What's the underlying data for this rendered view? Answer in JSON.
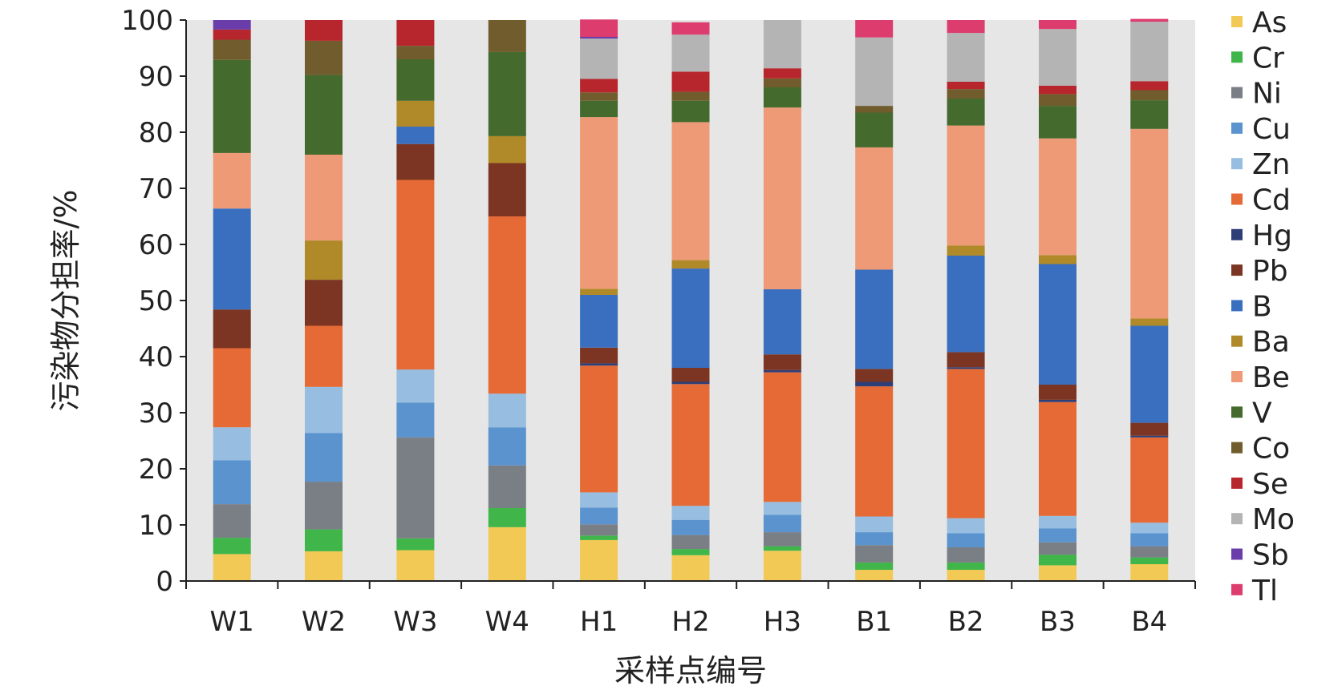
{
  "chart_data": {
    "type": "bar",
    "stacked": true,
    "title": "",
    "xlabel": "采样点编号",
    "ylabel": "污染物分担率/%",
    "ylim": [
      0,
      100
    ],
    "yticks": [
      0,
      10,
      20,
      30,
      40,
      50,
      60,
      70,
      80,
      90,
      100
    ],
    "grid": false,
    "legend_position": "right",
    "categories": [
      "W1",
      "W2",
      "W3",
      "W4",
      "H1",
      "H2",
      "H3",
      "B1",
      "B2",
      "B3",
      "B4"
    ],
    "series": [
      {
        "name": "As",
        "color": "#F2C955",
        "values": [
          4.8,
          5.3,
          5.5,
          9.6,
          7.3,
          4.6,
          5.4,
          2.0,
          2.0,
          2.8,
          3.0
        ]
      },
      {
        "name": "Cr",
        "color": "#3FB54A",
        "values": [
          2.9,
          3.9,
          2.1,
          3.4,
          0.8,
          1.1,
          0.8,
          1.3,
          1.3,
          1.9,
          1.2
        ]
      },
      {
        "name": "Ni",
        "color": "#7A7E85",
        "values": [
          6.0,
          8.5,
          18.0,
          7.6,
          2.0,
          2.5,
          2.5,
          3.1,
          2.7,
          2.2,
          2.0
        ]
      },
      {
        "name": "Cu",
        "color": "#5B93CF",
        "values": [
          7.8,
          8.7,
          6.2,
          6.8,
          3.0,
          2.7,
          3.1,
          2.3,
          2.5,
          2.5,
          2.3
        ]
      },
      {
        "name": "Zn",
        "color": "#97BDE0",
        "values": [
          5.9,
          8.2,
          5.9,
          6.0,
          2.7,
          2.5,
          2.3,
          2.8,
          2.7,
          2.2,
          1.9
        ]
      },
      {
        "name": "Cd",
        "color": "#E56A36",
        "values": [
          14.1,
          10.9,
          33.8,
          31.6,
          22.6,
          21.7,
          23.1,
          23.2,
          26.6,
          20.3,
          15.2
        ]
      },
      {
        "name": "Hg",
        "color": "#2E3F78",
        "values": [
          0.0,
          0.0,
          0.0,
          0.0,
          0.4,
          0.4,
          0.4,
          0.8,
          0.3,
          0.4,
          0.3
        ]
      },
      {
        "name": "Pb",
        "color": "#7B3522",
        "values": [
          6.9,
          8.2,
          6.4,
          9.5,
          2.8,
          2.5,
          2.8,
          2.3,
          2.7,
          2.7,
          2.3
        ]
      },
      {
        "name": "B",
        "color": "#3A6FC0",
        "values": [
          18.0,
          0.0,
          3.1,
          0.0,
          9.4,
          17.7,
          11.6,
          17.7,
          17.2,
          21.5,
          17.3
        ]
      },
      {
        "name": "Ba",
        "color": "#B08A28",
        "values": [
          0.0,
          7.0,
          4.6,
          4.8,
          1.1,
          1.5,
          0.0,
          0.0,
          1.8,
          1.6,
          1.3
        ]
      },
      {
        "name": "Be",
        "color": "#EE9A76",
        "values": [
          9.9,
          15.3,
          0.0,
          0.0,
          30.6,
          24.6,
          32.4,
          21.8,
          21.4,
          20.8,
          33.8
        ]
      },
      {
        "name": "V",
        "color": "#456A2D",
        "values": [
          16.6,
          14.2,
          7.4,
          15.0,
          2.9,
          3.8,
          3.6,
          6.2,
          4.8,
          5.8,
          5.1
        ]
      },
      {
        "name": "Co",
        "color": "#705C2C",
        "values": [
          3.6,
          6.1,
          2.4,
          5.7,
          1.5,
          1.6,
          1.6,
          1.2,
          1.7,
          2.1,
          1.8
        ]
      },
      {
        "name": "Se",
        "color": "#B8262D",
        "values": [
          1.8,
          3.7,
          4.6,
          0.0,
          2.4,
          3.6,
          1.8,
          0.0,
          1.3,
          1.5,
          1.6
        ]
      },
      {
        "name": "Mo",
        "color": "#B4B4B4",
        "values": [
          0.0,
          0.0,
          0.0,
          0.0,
          7.2,
          6.6,
          8.6,
          12.2,
          8.7,
          10.1,
          10.6
        ]
      },
      {
        "name": "Sb",
        "color": "#6A3DAA",
        "values": [
          1.7,
          0.0,
          0.0,
          0.0,
          0.3,
          0.0,
          0.0,
          0.0,
          0.0,
          0.0,
          0.0
        ]
      },
      {
        "name": "Tl",
        "color": "#DC3C6E",
        "values": [
          0.0,
          0.0,
          0.0,
          0.0,
          3.1,
          2.2,
          0.0,
          3.1,
          2.3,
          1.6,
          0.5
        ]
      }
    ]
  }
}
